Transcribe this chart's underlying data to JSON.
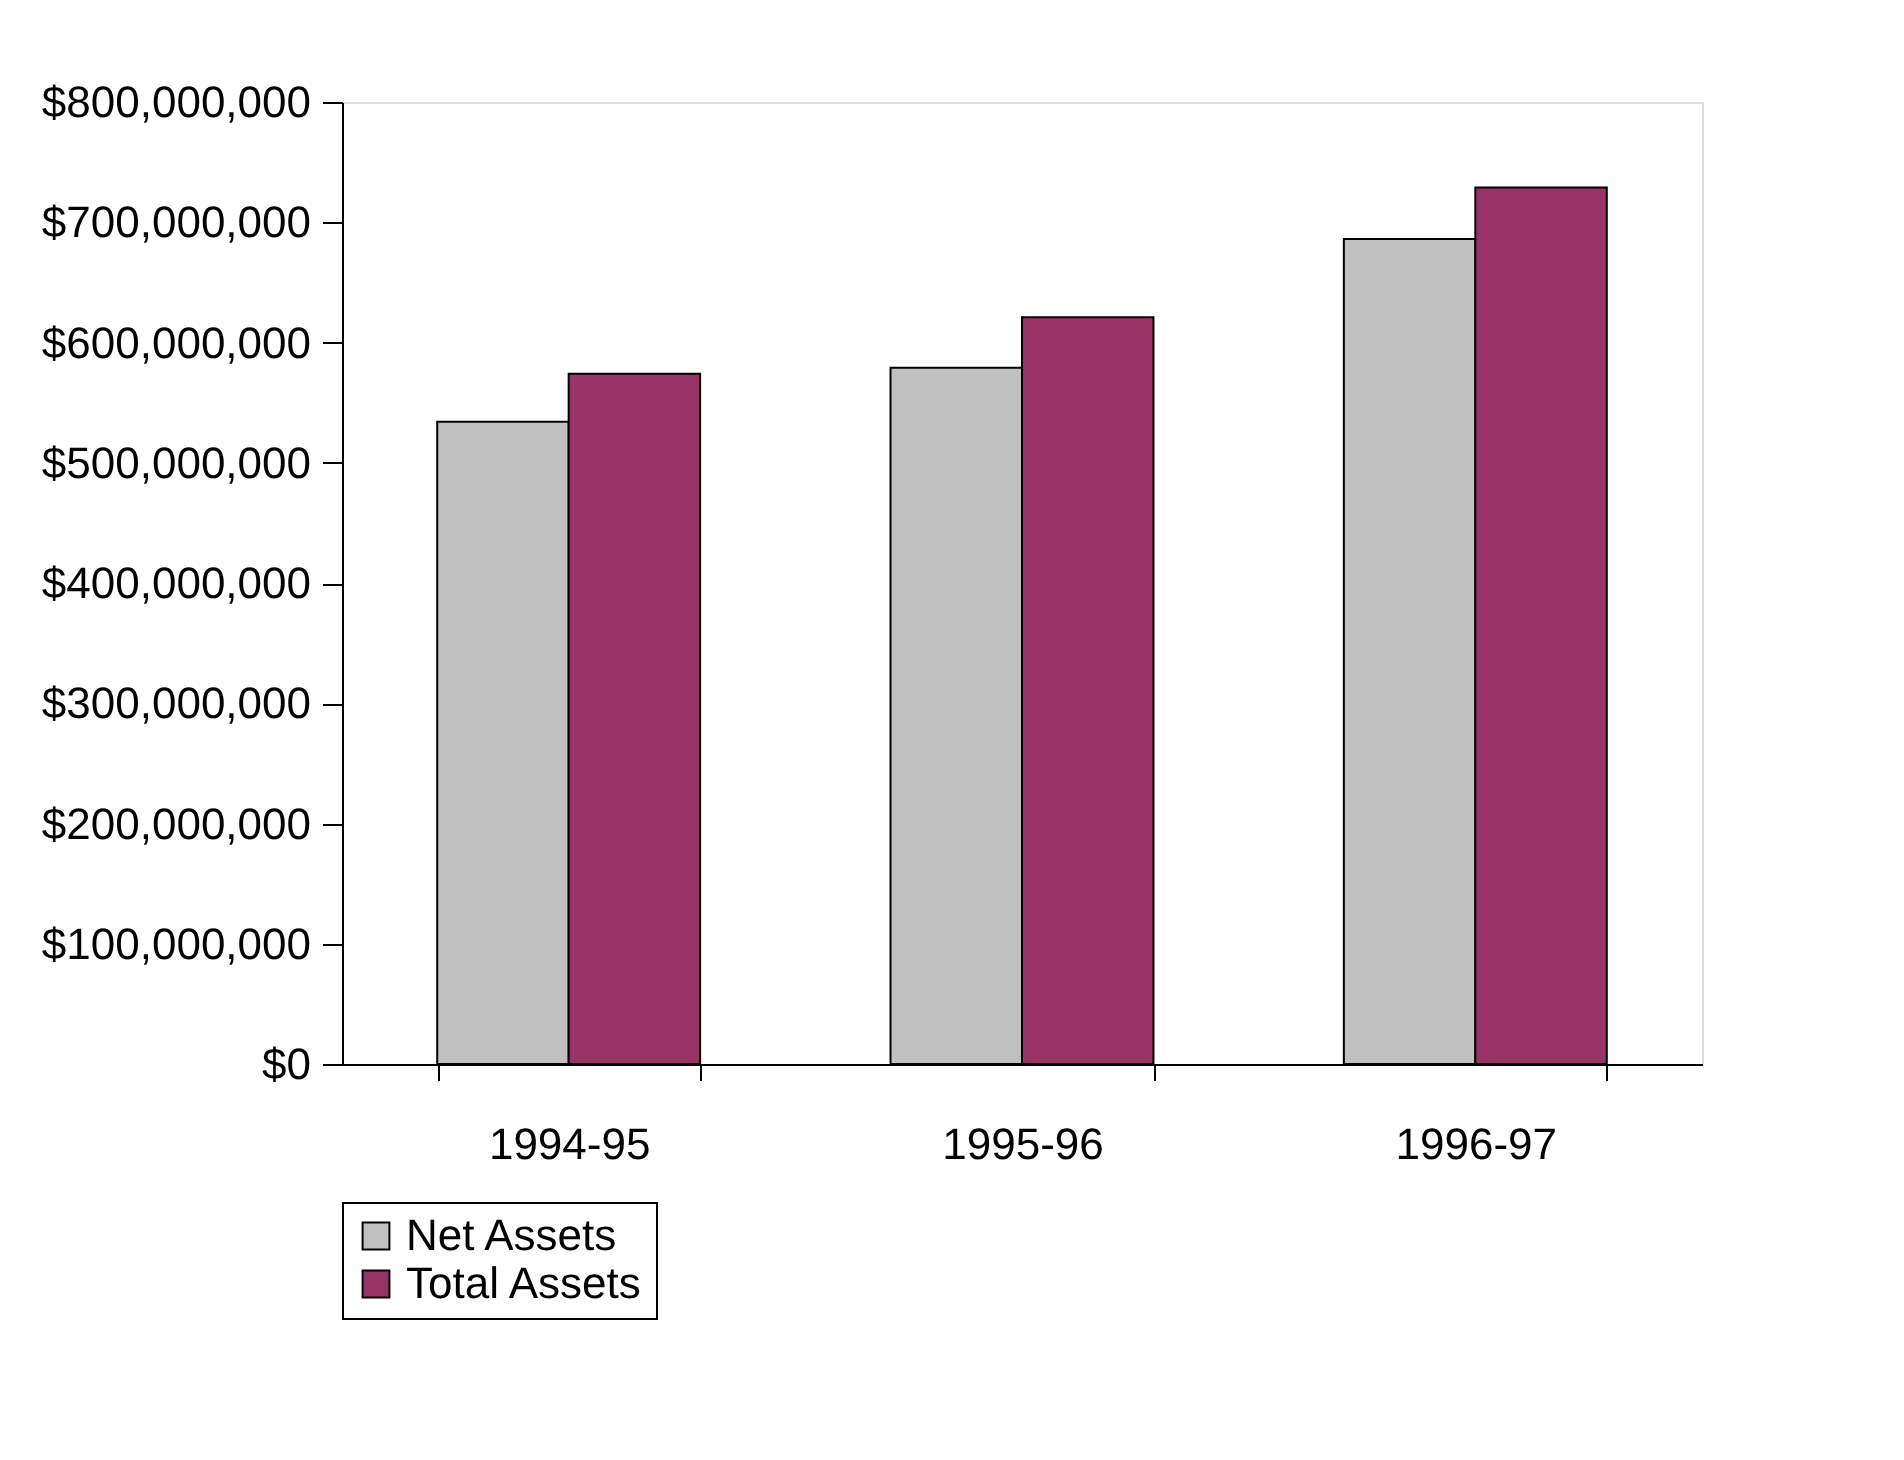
{
  "chart_data": {
    "type": "bar",
    "categories": [
      "1994-95",
      "1995-96",
      "1996-97"
    ],
    "series": [
      {
        "name": "Net Assets",
        "color": "#c0c0c0",
        "values": [
          534000000,
          579000000,
          686000000
        ]
      },
      {
        "name": "Total Assets",
        "color": "#993366",
        "values": [
          574000000,
          621000000,
          729000000
        ]
      }
    ],
    "ylim": [
      0,
      800000000
    ],
    "yticks": [
      {
        "value": 0,
        "label": "$0"
      },
      {
        "value": 100000000,
        "label": "$100,000,000"
      },
      {
        "value": 200000000,
        "label": "$200,000,000"
      },
      {
        "value": 300000000,
        "label": "$300,000,000"
      },
      {
        "value": 400000000,
        "label": "$400,000,000"
      },
      {
        "value": 500000000,
        "label": "$500,000,000"
      },
      {
        "value": 600000000,
        "label": "$600,000,000"
      },
      {
        "value": 700000000,
        "label": "$700,000,000"
      },
      {
        "value": 800000000,
        "label": "$800,000,000"
      }
    ],
    "grid": false,
    "legend": "bottom"
  }
}
